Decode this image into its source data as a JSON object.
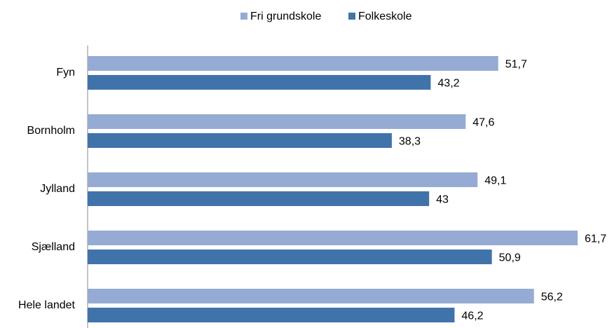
{
  "chart_data": {
    "type": "barh",
    "categories": [
      "Fyn",
      "Bornholm",
      "Jylland",
      "Sjælland",
      "Hele landet"
    ],
    "series": [
      {
        "name": "Fri grundskole",
        "color": "#95abd4",
        "values": [
          51.7,
          47.6,
          49.1,
          61.7,
          56.2
        ],
        "value_labels": [
          "51,7",
          "47,6",
          "49,1",
          "61,7",
          "56,2"
        ]
      },
      {
        "name": "Folkeskole",
        "color": "#4173ab",
        "values": [
          43.2,
          38.3,
          43,
          50.9,
          46.2
        ],
        "value_labels": [
          "43,2",
          "38,3",
          "43",
          "50,9",
          "46,2"
        ]
      }
    ],
    "legend": "top"
  }
}
